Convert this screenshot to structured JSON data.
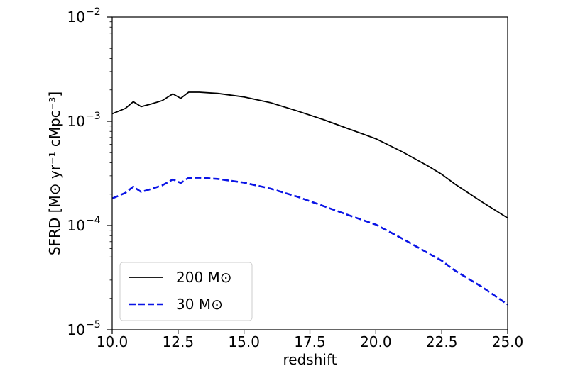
{
  "chart_data": {
    "type": "line",
    "title": "",
    "xlabel": "redshift",
    "ylabel": "SFRD [M⊙ yr⁻¹ cMpc⁻³]",
    "xlim": [
      10.0,
      25.0
    ],
    "ylim": [
      1e-05,
      0.01
    ],
    "yscale": "log",
    "grid": false,
    "legend_position": "lower-left",
    "x_ticks": [
      "10.0",
      "12.5",
      "15.0",
      "17.5",
      "20.0",
      "22.5",
      "25.0"
    ],
    "y_ticks": [
      {
        "base": "10",
        "exp": "−5"
      },
      {
        "base": "10",
        "exp": "−4"
      },
      {
        "base": "10",
        "exp": "−3"
      },
      {
        "base": "10",
        "exp": "−2"
      }
    ],
    "series": [
      {
        "name": "200 M⊙",
        "color": "#000000",
        "style": "solid",
        "x": [
          10.0,
          10.5,
          10.8,
          11.1,
          11.5,
          11.9,
          12.3,
          12.6,
          12.9,
          13.3,
          14.0,
          15.0,
          16.0,
          17.0,
          18.0,
          19.0,
          20.0,
          21.0,
          22.0,
          22.5,
          23.0,
          24.0,
          25.0
        ],
        "y": [
          0.00118,
          0.00133,
          0.00154,
          0.00138,
          0.00147,
          0.00158,
          0.00183,
          0.00166,
          0.0019,
          0.0019,
          0.00185,
          0.00171,
          0.00151,
          0.00126,
          0.00104,
          0.00084,
          0.00068,
          0.00051,
          0.00037,
          0.00031,
          0.00025,
          0.00017,
          0.000118
        ]
      },
      {
        "name": "30 M⊙",
        "color": "#0a14e6",
        "style": "dashed",
        "x": [
          10.0,
          10.5,
          10.8,
          11.1,
          11.5,
          11.9,
          12.3,
          12.6,
          12.9,
          13.3,
          14.0,
          15.0,
          16.0,
          17.0,
          18.0,
          19.0,
          20.0,
          21.0,
          22.0,
          22.5,
          23.0,
          24.0,
          25.0
        ],
        "y": [
          0.000182,
          0.000206,
          0.000236,
          0.00021,
          0.000225,
          0.000243,
          0.000277,
          0.000256,
          0.000287,
          0.000288,
          0.00028,
          0.000258,
          0.000226,
          0.00019,
          0.000154,
          0.000125,
          0.000102,
          7.5e-05,
          5.4e-05,
          4.6e-05,
          3.7e-05,
          2.6e-05,
          1.75e-05
        ]
      }
    ]
  }
}
